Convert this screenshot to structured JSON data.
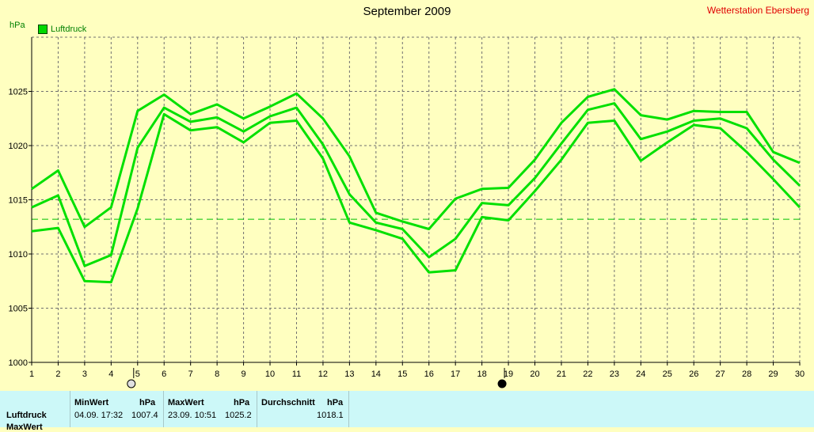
{
  "header": {
    "title": "September 2009",
    "station": "Wetterstation Ebersberg",
    "unit": "hPa",
    "legend_label": "Luftdruck"
  },
  "chart_data": {
    "type": "line",
    "title": "September 2009",
    "ylabel": "hPa",
    "xlim": [
      1,
      30
    ],
    "ylim": [
      1000,
      1030
    ],
    "x": [
      1,
      2,
      3,
      4,
      5,
      6,
      7,
      8,
      9,
      10,
      11,
      12,
      13,
      14,
      15,
      16,
      17,
      18,
      19,
      20,
      21,
      22,
      23,
      24,
      25,
      26,
      27,
      28,
      29,
      30
    ],
    "y_ticks": [
      1000,
      1005,
      1010,
      1015,
      1020,
      1025
    ],
    "grid": true,
    "reference_line": 1013.2,
    "series": [
      {
        "values": [
          1016.0,
          1017.7,
          1012.5,
          1014.3,
          1023.2,
          1024.7,
          1022.9,
          1023.8,
          1022.5,
          1023.6,
          1024.8,
          1022.5,
          1019.0,
          1013.8,
          1013.0,
          1012.3,
          1015.1,
          1016.0,
          1016.1,
          1018.7,
          1022.1,
          1024.5,
          1025.2,
          1022.8,
          1022.4,
          1023.2,
          1023.1,
          1023.1,
          1019.4,
          1018.4
        ]
      },
      {
        "name": "Luftdruck",
        "values": [
          1014.3,
          1015.4,
          1008.9,
          1009.9,
          1019.8,
          1023.5,
          1022.2,
          1022.6,
          1021.3,
          1022.7,
          1023.5,
          1020.1,
          1015.5,
          1012.9,
          1012.3,
          1009.7,
          1011.4,
          1014.7,
          1014.5,
          1017.0,
          1020.2,
          1023.3,
          1023.9,
          1020.6,
          1021.3,
          1022.3,
          1022.5,
          1021.6,
          1018.7,
          1016.3
        ]
      },
      {
        "values": [
          1012.1,
          1012.4,
          1007.5,
          1007.4,
          1014.2,
          1022.9,
          1021.4,
          1021.7,
          1020.3,
          1022.1,
          1022.3,
          1018.8,
          1012.9,
          1012.2,
          1011.4,
          1008.3,
          1008.5,
          1013.4,
          1013.1,
          1015.8,
          1018.7,
          1022.1,
          1022.3,
          1018.6,
          1020.3,
          1021.9,
          1021.6,
          1019.4,
          1016.9,
          1014.3
        ]
      }
    ],
    "markers": [
      {
        "x": 5,
        "symbol": "open-circle"
      },
      {
        "x": 19,
        "symbol": "filled-circle"
      }
    ],
    "colors": {
      "line": "#00e000",
      "grid": "#707070",
      "reference": "#00c000",
      "background": "#ffffc0"
    }
  },
  "stats": {
    "row_labels": [
      "Luftdruck",
      "MaxWert"
    ],
    "min": {
      "header": "MinWert",
      "unit": "hPa",
      "datetime": "04.09.  17:32",
      "value": "1007.4"
    },
    "max": {
      "header": "MaxWert",
      "unit": "hPa",
      "datetime": "23.09.  10:51",
      "value": "1025.2"
    },
    "avg": {
      "header": "Durchschnitt",
      "unit": "hPa",
      "value": "1018.1"
    }
  }
}
